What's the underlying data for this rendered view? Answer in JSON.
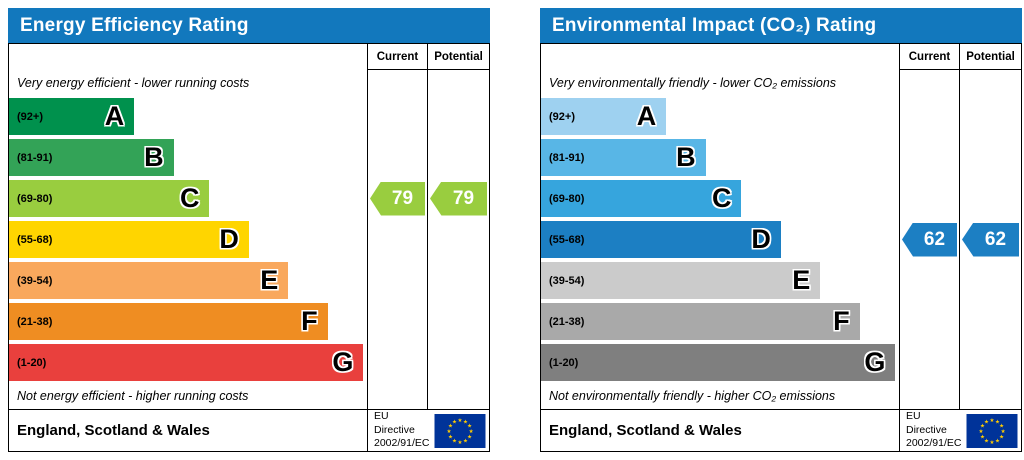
{
  "theme": {
    "header_bg": "#1278bd",
    "flag_blue": "#003399",
    "flag_yellow": "#ffcc00"
  },
  "chart_data": [
    {
      "type": "bar",
      "subtype": "epc-rating-bands",
      "title": "Energy Efficiency Rating",
      "columns": [
        "Current",
        "Potential"
      ],
      "top_caption": "Very energy efficient - lower running costs",
      "bottom_caption": "Not energy efficient - higher running costs",
      "bands": [
        {
          "letter": "A",
          "range": "(92+)",
          "color": "#00914d",
          "width": "35%"
        },
        {
          "letter": "B",
          "range": "(81-91)",
          "color": "#33a357",
          "width": "46%"
        },
        {
          "letter": "C",
          "range": "(69-80)",
          "color": "#99cd3f",
          "width": "56%"
        },
        {
          "letter": "D",
          "range": "(55-68)",
          "color": "#ffd500",
          "width": "67%"
        },
        {
          "letter": "E",
          "range": "(39-54)",
          "color": "#f9a85d",
          "width": "78%"
        },
        {
          "letter": "F",
          "range": "(21-38)",
          "color": "#ef8d22",
          "width": "89%"
        },
        {
          "letter": "G",
          "range": "(1-20)",
          "color": "#e9403d",
          "width": "99%"
        }
      ],
      "ratings": {
        "current": {
          "value": 79,
          "band": "C"
        },
        "potential": {
          "value": 79,
          "band": "C"
        }
      },
      "footer": {
        "region": "England, Scotland & Wales",
        "directive": [
          "EU Directive",
          "2002/91/EC"
        ]
      }
    },
    {
      "type": "bar",
      "subtype": "epc-rating-bands",
      "title": "Environmental Impact (CO₂) Rating",
      "columns": [
        "Current",
        "Potential"
      ],
      "top_caption": "Very environmentally friendly - lower CO₂ emissions",
      "bottom_caption": "Not environmentally friendly - higher CO₂ emissions",
      "bands": [
        {
          "letter": "A",
          "range": "(92+)",
          "color": "#9ed1f0",
          "width": "35%"
        },
        {
          "letter": "B",
          "range": "(81-91)",
          "color": "#58b6e6",
          "width": "46%"
        },
        {
          "letter": "C",
          "range": "(69-80)",
          "color": "#36a5dd",
          "width": "56%"
        },
        {
          "letter": "D",
          "range": "(55-68)",
          "color": "#1c7fc3",
          "width": "67%"
        },
        {
          "letter": "E",
          "range": "(39-54)",
          "color": "#cbcbcb",
          "width": "78%"
        },
        {
          "letter": "F",
          "range": "(21-38)",
          "color": "#a9a9a9",
          "width": "89%"
        },
        {
          "letter": "G",
          "range": "(1-20)",
          "color": "#7f7f7f",
          "width": "99%"
        }
      ],
      "ratings": {
        "current": {
          "value": 62,
          "band": "D"
        },
        "potential": {
          "value": 62,
          "band": "D"
        }
      },
      "footer": {
        "region": "England, Scotland & Wales",
        "directive": [
          "EU Directive",
          "2002/91/EC"
        ]
      }
    }
  ]
}
